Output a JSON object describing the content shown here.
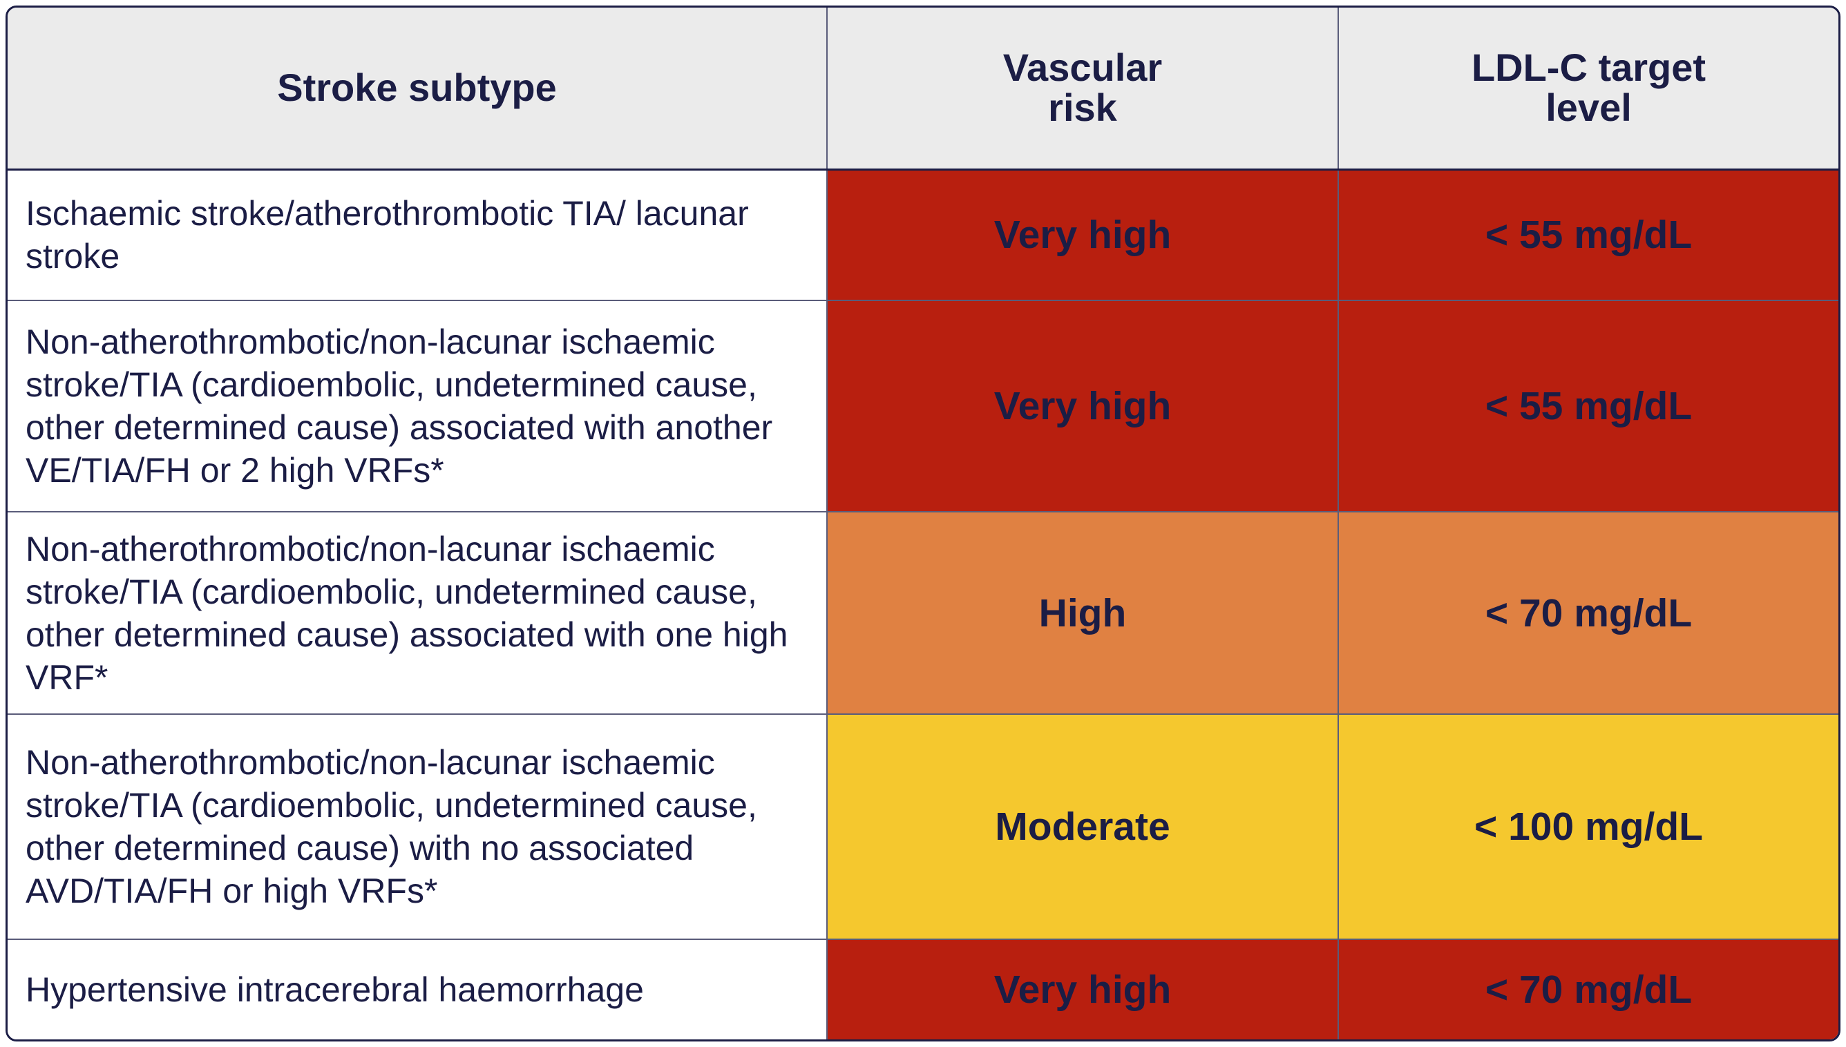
{
  "table": {
    "headers": {
      "subtype": "Stroke subtype",
      "risk_line1": "Vascular",
      "risk_line2": "risk",
      "target_line1": "LDL-C target",
      "target_line2": "level"
    },
    "rows": [
      {
        "subtype": "Ischaemic stroke/atherothrombotic TIA/ lacunar stroke",
        "risk": "Very high",
        "target": "< 55 mg/dL",
        "color": "#b81f0f"
      },
      {
        "subtype": "Non-atherothrombotic/non-lacunar ischaemic stroke/TIA (cardioembolic, undetermined cause, other determined cause) associated with another VE/TIA/FH or 2 high VRFs*",
        "risk": "Very high",
        "target": "< 55 mg/dL",
        "color": "#b81f0f"
      },
      {
        "subtype": "Non-atherothrombotic/non-lacunar ischaemic stroke/TIA (cardioembolic, undetermined cause, other determined cause) associated with one high VRF*",
        "risk": "High",
        "target": "< 70 mg/dL",
        "color": "#e08142"
      },
      {
        "subtype": "Non-atherothrombotic/non-lacunar ischaemic stroke/TIA (cardioembolic, undetermined cause, other determined cause) with no associated AVD/TIA/FH or high VRFs*",
        "risk": "Moderate",
        "target": "< 100 mg/dL",
        "color": "#f5c82e"
      },
      {
        "subtype": "Hypertensive intracerebral haemorrhage",
        "risk": "Very high",
        "target": "< 70 mg/dL",
        "color": "#b81f0f"
      }
    ]
  },
  "colors": {
    "header_bg": "#ebebeb",
    "text": "#1b1d45",
    "very_high": "#b81f0f",
    "high": "#e08142",
    "moderate": "#f5c82e"
  }
}
